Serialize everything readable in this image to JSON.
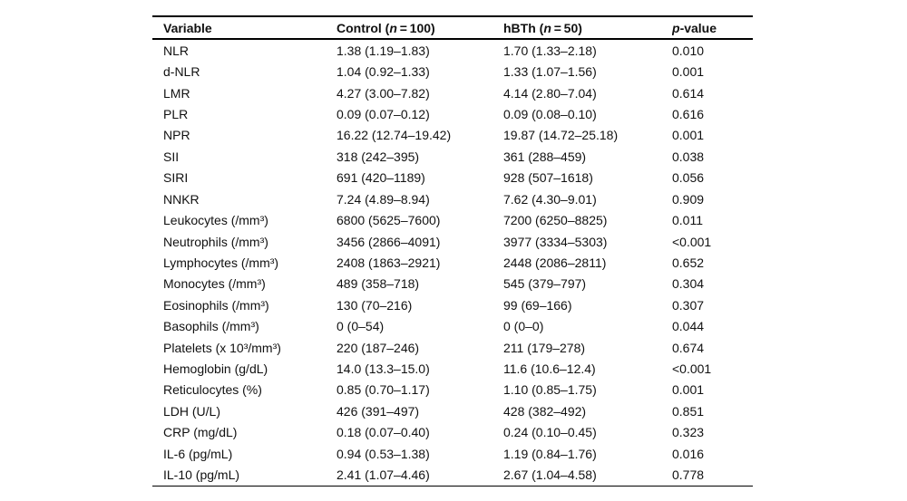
{
  "page": {
    "background": "#ffffff",
    "text_color": "#111111",
    "rule_color": "#000000"
  },
  "table": {
    "columns": [
      {
        "pre": "Variable",
        "italic": "",
        "post": ""
      },
      {
        "pre": "Control (",
        "italic": "n",
        "post": " = 100)"
      },
      {
        "pre": "hBTh (",
        "italic": "n",
        "post": " = 50)"
      },
      {
        "pre": "",
        "italic": "p",
        "post": "-value"
      }
    ],
    "rows": [
      [
        "NLR",
        "1.38 (1.19–1.83)",
        "1.70 (1.33–2.18)",
        "0.010"
      ],
      [
        "d-NLR",
        "1.04 (0.92–1.33)",
        "1.33 (1.07–1.56)",
        "0.001"
      ],
      [
        "LMR",
        "4.27 (3.00–7.82)",
        "4.14 (2.80–7.04)",
        "0.614"
      ],
      [
        "PLR",
        "0.09 (0.07–0.12)",
        "0.09 (0.08–0.10)",
        "0.616"
      ],
      [
        "NPR",
        "16.22 (12.74–19.42)",
        "19.87 (14.72–25.18)",
        "0.001"
      ],
      [
        "SII",
        "318 (242–395)",
        "361 (288–459)",
        "0.038"
      ],
      [
        "SIRI",
        "691 (420–1189)",
        "928 (507–1618)",
        "0.056"
      ],
      [
        "NNKR",
        "7.24 (4.89–8.94)",
        "7.62 (4.30–9.01)",
        "0.909"
      ],
      [
        "Leukocytes (/mm³)",
        "6800 (5625–7600)",
        "7200 (6250–8825)",
        "0.011"
      ],
      [
        "Neutrophils (/mm³)",
        "3456 (2866–4091)",
        "3977 (3334–5303)",
        "<0.001"
      ],
      [
        "Lymphocytes (/mm³)",
        "2408 (1863–2921)",
        "2448 (2086–2811)",
        "0.652"
      ],
      [
        "Monocytes (/mm³)",
        "489 (358–718)",
        "545 (379–797)",
        "0.304"
      ],
      [
        "Eosinophils (/mm³)",
        "130 (70–216)",
        "99 (69–166)",
        "0.307"
      ],
      [
        "Basophils (/mm³)",
        "0 (0–54)",
        "0 (0–0)",
        "0.044"
      ],
      [
        "Platelets (x 10³/mm³)",
        "220 (187–246)",
        "211 (179–278)",
        "0.674"
      ],
      [
        "Hemoglobin (g/dL)",
        "14.0 (13.3–15.0)",
        "11.6 (10.6–12.4)",
        "<0.001"
      ],
      [
        "Reticulocytes (%)",
        "0.85 (0.70–1.17)",
        "1.10 (0.85–1.75)",
        "0.001"
      ],
      [
        "LDH (U/L)",
        "426 (391–497)",
        "428 (382–492)",
        "0.851"
      ],
      [
        "CRP (mg/dL)",
        "0.18 (0.07–0.40)",
        "0.24 (0.10–0.45)",
        "0.323"
      ],
      [
        "IL-6 (pg/mL)",
        "0.94 (0.53–1.38)",
        "1.19 (0.84–1.76)",
        "0.016"
      ],
      [
        "IL-10 (pg/mL)",
        "2.41 (1.07–4.46)",
        "2.67 (1.04–4.58)",
        "0.778"
      ]
    ]
  }
}
